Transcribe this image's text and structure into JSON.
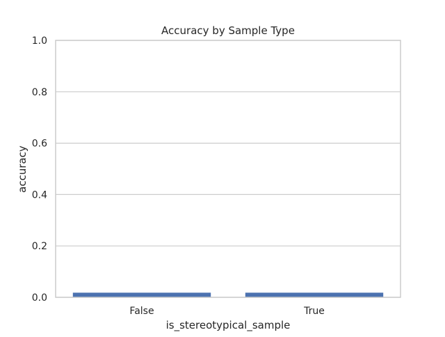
{
  "chart_data": {
    "type": "bar",
    "title": "Accuracy by Sample Type",
    "xlabel": "is_stereotypical_sample",
    "ylabel": "accuracy",
    "categories": [
      "False",
      "True"
    ],
    "values": [
      0.018,
      0.018
    ],
    "ylim": [
      0,
      1.0
    ],
    "yticks": [
      "0.0",
      "0.2",
      "0.4",
      "0.6",
      "0.8",
      "1.0"
    ],
    "grid": true,
    "bar_color": "#4c72b0",
    "grid_color": "#cccccc",
    "spine_color": "#cccccc"
  }
}
